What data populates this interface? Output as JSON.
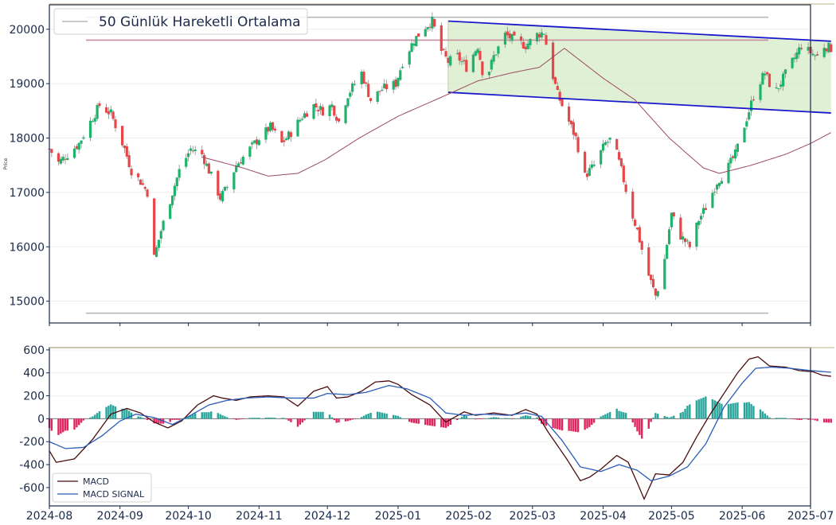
{
  "chart_data": [
    {
      "type": "candlestick",
      "ylabel": "Price",
      "ylim": [
        14600,
        20450
      ],
      "yticks": [
        15000,
        16000,
        17000,
        18000,
        19000,
        20000
      ],
      "xlim": [
        "2024-08-01",
        "2025-07-01"
      ],
      "xticks": [
        "2024-08",
        "2024-09",
        "2024-10",
        "2024-11",
        "2024-12",
        "2025-01",
        "2025-02",
        "2025-03",
        "2025-04",
        "2025-05",
        "2025-06",
        "2025-07"
      ],
      "legend": {
        "entries": [
          "50 Günlük Hareketli Ortalama"
        ],
        "placement": "upper-left"
      },
      "colors": {
        "up": "#1db36b",
        "down": "#e8474a",
        "ma": "#9c4a62",
        "channel": "#1a1acc",
        "channel_fill": "#d6ebc7",
        "level_line": "#b7b7b7",
        "pink_line": "#c98da0",
        "frame": "#1a2a4a"
      },
      "close_points": [
        [
          "2024-08-01",
          17800
        ],
        [
          "2024-08-05",
          17550
        ],
        [
          "2024-08-09",
          17700
        ],
        [
          "2024-08-14",
          17900
        ],
        [
          "2024-08-19",
          18300
        ],
        [
          "2024-08-23",
          18600
        ],
        [
          "2024-08-28",
          18450
        ],
        [
          "2024-09-03",
          17800
        ],
        [
          "2024-09-06",
          17400
        ],
        [
          "2024-09-10",
          17200
        ],
        [
          "2024-09-13",
          17000
        ],
        [
          "2024-09-16",
          15800
        ],
        [
          "2024-09-19",
          16300
        ],
        [
          "2024-09-24",
          17000
        ],
        [
          "2024-09-27",
          17400
        ],
        [
          "2024-10-02",
          17800
        ],
        [
          "2024-10-07",
          17700
        ],
        [
          "2024-10-10",
          17400
        ],
        [
          "2024-10-15",
          16900
        ],
        [
          "2024-10-18",
          17100
        ],
        [
          "2024-10-22",
          17500
        ],
        [
          "2024-10-28",
          17800
        ],
        [
          "2024-11-01",
          18000
        ],
        [
          "2024-11-06",
          18200
        ],
        [
          "2024-11-11",
          17900
        ],
        [
          "2024-11-15",
          18100
        ],
        [
          "2024-11-20",
          18400
        ],
        [
          "2024-11-25",
          18600
        ],
        [
          "2024-11-29",
          18500
        ],
        [
          "2024-12-03",
          18600
        ],
        [
          "2024-12-06",
          18300
        ],
        [
          "2024-12-10",
          18800
        ],
        [
          "2024-12-16",
          19200
        ],
        [
          "2024-12-20",
          18700
        ],
        [
          "2024-12-25",
          18900
        ],
        [
          "2024-12-31",
          19000
        ],
        [
          "2025-01-03",
          19400
        ],
        [
          "2025-01-08",
          19800
        ],
        [
          "2025-01-13",
          20050
        ],
        [
          "2025-01-16",
          20150
        ],
        [
          "2025-01-20",
          19600
        ],
        [
          "2025-01-23",
          19400
        ],
        [
          "2025-01-27",
          19500
        ],
        [
          "2025-01-31",
          19300
        ],
        [
          "2025-02-05",
          19700
        ],
        [
          "2025-02-08",
          19000
        ],
        [
          "2025-02-12",
          19500
        ],
        [
          "2025-02-17",
          19900
        ],
        [
          "2025-02-21",
          19800
        ],
        [
          "2025-02-26",
          19700
        ],
        [
          "2025-03-03",
          19900
        ],
        [
          "2025-03-06",
          19950
        ],
        [
          "2025-03-09",
          19300
        ],
        [
          "2025-03-12",
          18800
        ],
        [
          "2025-03-16",
          18400
        ],
        [
          "2025-03-20",
          18000
        ],
        [
          "2025-03-24",
          17300
        ],
        [
          "2025-03-28",
          17500
        ],
        [
          "2025-04-02",
          17900
        ],
        [
          "2025-04-05",
          18000
        ],
        [
          "2025-04-09",
          17400
        ],
        [
          "2025-04-13",
          16700
        ],
        [
          "2025-04-16",
          16300
        ],
        [
          "2025-04-20",
          15600
        ],
        [
          "2025-04-24",
          15100
        ],
        [
          "2025-04-27",
          15500
        ],
        [
          "2025-05-01",
          16600
        ],
        [
          "2025-05-05",
          16200
        ],
        [
          "2025-05-09",
          16000
        ],
        [
          "2025-05-13",
          16500
        ],
        [
          "2025-05-17",
          16800
        ],
        [
          "2025-05-21",
          17200
        ],
        [
          "2025-05-25",
          17400
        ],
        [
          "2025-05-29",
          17700
        ],
        [
          "2025-06-01",
          18100
        ],
        [
          "2025-06-04",
          18500
        ],
        [
          "2025-06-07",
          18900
        ],
        [
          "2025-06-11",
          19200
        ],
        [
          "2025-06-15",
          18800
        ],
        [
          "2025-06-19",
          19100
        ],
        [
          "2025-06-23",
          19400
        ],
        [
          "2025-06-27",
          19700
        ],
        [
          "2025-06-30",
          19600
        ],
        [
          "2025-07-04",
          19500
        ],
        [
          "2025-07-07",
          19700
        ],
        [
          "2025-07-10",
          19650
        ]
      ],
      "ma50_points": [
        [
          "2024-10-07",
          17650
        ],
        [
          "2024-10-25",
          17450
        ],
        [
          "2024-11-05",
          17300
        ],
        [
          "2024-11-18",
          17350
        ],
        [
          "2024-11-30",
          17600
        ],
        [
          "2024-12-15",
          18000
        ],
        [
          "2025-01-01",
          18400
        ],
        [
          "2025-01-20",
          18750
        ],
        [
          "2025-02-05",
          19050
        ],
        [
          "2025-02-20",
          19200
        ],
        [
          "2025-03-04",
          19300
        ],
        [
          "2025-03-15",
          19650
        ],
        [
          "2025-04-01",
          19100
        ],
        [
          "2025-04-15",
          18700
        ],
        [
          "2025-04-30",
          18000
        ],
        [
          "2025-05-15",
          17450
        ],
        [
          "2025-05-22",
          17350
        ],
        [
          "2025-06-05",
          17500
        ],
        [
          "2025-06-20",
          17700
        ],
        [
          "2025-07-01",
          17900
        ],
        [
          "2025-07-10",
          18100
        ]
      ],
      "channel": {
        "start": "2025-01-23",
        "end": "2025-07-10",
        "upper": [
          20150,
          19780
        ],
        "lower": [
          18840,
          18460
        ]
      },
      "horizontal_lines": [
        {
          "value": 20220,
          "color": "#b7b7b7"
        },
        {
          "value": 19800,
          "color": "#c98da0"
        },
        {
          "value": 14780,
          "color": "#b7b7b7"
        }
      ]
    },
    {
      "type": "line",
      "ylim": [
        -760,
        620
      ],
      "yticks": [
        -600,
        -400,
        -200,
        0,
        200,
        400,
        600
      ],
      "legend": {
        "entries": [
          "MACD",
          "MACD SIGNAL"
        ],
        "placement": "lower-left"
      },
      "series": [
        {
          "name": "MACD",
          "color": "#4a0d0d",
          "points": [
            [
              "2024-08-01",
              -280
            ],
            [
              "2024-08-04",
              -380
            ],
            [
              "2024-08-12",
              -350
            ],
            [
              "2024-08-20",
              -180
            ],
            [
              "2024-08-28",
              40
            ],
            [
              "2024-09-04",
              90
            ],
            [
              "2024-09-10",
              50
            ],
            [
              "2024-09-16",
              -30
            ],
            [
              "2024-09-22",
              -80
            ],
            [
              "2024-09-28",
              -20
            ],
            [
              "2024-10-05",
              120
            ],
            [
              "2024-10-12",
              200
            ],
            [
              "2024-10-16",
              180
            ],
            [
              "2024-10-22",
              160
            ],
            [
              "2024-10-28",
              190
            ],
            [
              "2024-11-05",
              200
            ],
            [
              "2024-11-12",
              190
            ],
            [
              "2024-11-18",
              110
            ],
            [
              "2024-11-25",
              240
            ],
            [
              "2024-12-01",
              280
            ],
            [
              "2024-12-05",
              180
            ],
            [
              "2024-12-10",
              190
            ],
            [
              "2024-12-16",
              240
            ],
            [
              "2024-12-22",
              320
            ],
            [
              "2024-12-28",
              330
            ],
            [
              "2025-01-01",
              300
            ],
            [
              "2025-01-07",
              210
            ],
            [
              "2025-01-15",
              120
            ],
            [
              "2025-01-22",
              -30
            ],
            [
              "2025-01-30",
              60
            ],
            [
              "2025-02-04",
              30
            ],
            [
              "2025-02-12",
              50
            ],
            [
              "2025-02-20",
              30
            ],
            [
              "2025-02-26",
              80
            ],
            [
              "2025-03-03",
              40
            ],
            [
              "2025-03-08",
              -120
            ],
            [
              "2025-03-16",
              -350
            ],
            [
              "2025-03-22",
              -540
            ],
            [
              "2025-03-26",
              -510
            ],
            [
              "2025-03-31",
              -440
            ],
            [
              "2025-04-07",
              -320
            ],
            [
              "2025-04-12",
              -380
            ],
            [
              "2025-04-16",
              -560
            ],
            [
              "2025-04-19",
              -700
            ],
            [
              "2025-04-24",
              -480
            ],
            [
              "2025-04-30",
              -490
            ],
            [
              "2025-05-06",
              -380
            ],
            [
              "2025-05-12",
              -160
            ],
            [
              "2025-05-18",
              40
            ],
            [
              "2025-05-24",
              220
            ],
            [
              "2025-05-30",
              400
            ],
            [
              "2025-06-04",
              520
            ],
            [
              "2025-06-08",
              540
            ],
            [
              "2025-06-13",
              460
            ],
            [
              "2025-06-20",
              450
            ],
            [
              "2025-06-26",
              420
            ],
            [
              "2025-07-02",
              410
            ],
            [
              "2025-07-06",
              380
            ],
            [
              "2025-07-10",
              370
            ]
          ]
        },
        {
          "name": "MACD SIGNAL",
          "color": "#2b5cb8",
          "points": [
            [
              "2024-08-01",
              -200
            ],
            [
              "2024-08-08",
              -260
            ],
            [
              "2024-08-16",
              -250
            ],
            [
              "2024-08-24",
              -150
            ],
            [
              "2024-09-01",
              -20
            ],
            [
              "2024-09-08",
              40
            ],
            [
              "2024-09-16",
              10
            ],
            [
              "2024-09-24",
              -50
            ],
            [
              "2024-10-02",
              30
            ],
            [
              "2024-10-10",
              120
            ],
            [
              "2024-10-18",
              160
            ],
            [
              "2024-10-26",
              180
            ],
            [
              "2024-11-05",
              190
            ],
            [
              "2024-11-15",
              180
            ],
            [
              "2024-11-25",
              180
            ],
            [
              "2024-12-01",
              220
            ],
            [
              "2024-12-10",
              210
            ],
            [
              "2024-12-18",
              230
            ],
            [
              "2024-12-28",
              290
            ],
            [
              "2025-01-05",
              260
            ],
            [
              "2025-01-15",
              180
            ],
            [
              "2025-01-22",
              50
            ],
            [
              "2025-01-30",
              30
            ],
            [
              "2025-02-08",
              40
            ],
            [
              "2025-02-18",
              30
            ],
            [
              "2025-02-26",
              50
            ],
            [
              "2025-03-05",
              20
            ],
            [
              "2025-03-14",
              -190
            ],
            [
              "2025-03-22",
              -420
            ],
            [
              "2025-03-31",
              -460
            ],
            [
              "2025-04-08",
              -400
            ],
            [
              "2025-04-16",
              -450
            ],
            [
              "2025-04-22",
              -540
            ],
            [
              "2025-04-30",
              -500
            ],
            [
              "2025-05-08",
              -420
            ],
            [
              "2025-05-16",
              -220
            ],
            [
              "2025-05-24",
              100
            ],
            [
              "2025-06-01",
              310
            ],
            [
              "2025-06-07",
              440
            ],
            [
              "2025-06-14",
              450
            ],
            [
              "2025-06-22",
              440
            ],
            [
              "2025-07-01",
              420
            ],
            [
              "2025-07-10",
              405
            ]
          ]
        }
      ],
      "histogram_colors": {
        "positive": "#27a59a",
        "negative": "#e0245e"
      }
    }
  ]
}
